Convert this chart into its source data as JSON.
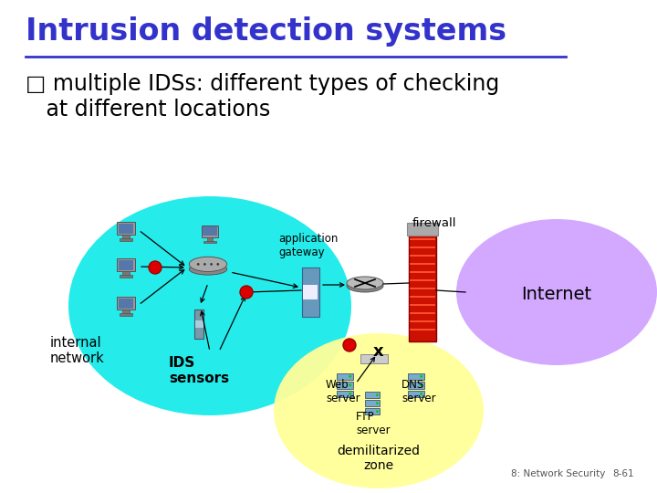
{
  "title": "Intrusion detection systems",
  "title_color": "#3333cc",
  "bullet_line1": "□ multiple IDSs: different types of checking",
  "bullet_line2": "   at different locations",
  "bullet_color": "#000000",
  "bg_color": "#ffffff",
  "footer_left": "8: Network Security",
  "footer_right": "8-61",
  "cyan_blob_color": "#00e8e8",
  "purple_blob_color": "#cc99ff",
  "yellow_blob_color": "#ffff99",
  "red_dot_color": "#dd0000",
  "firewall_color": "#cc1100",
  "label_internal": "internal\nnetwork",
  "label_ids": "IDS\nsensors",
  "label_app_gateway": "application\ngateway",
  "label_firewall": "firewall",
  "label_internet": "Internet",
  "label_web": "Web\nserver",
  "label_ftp": "FTP\nserver",
  "label_dns": "DNS\nserver",
  "label_dmz": "demilitarized\nzone",
  "font_family": "DejaVu Sans"
}
